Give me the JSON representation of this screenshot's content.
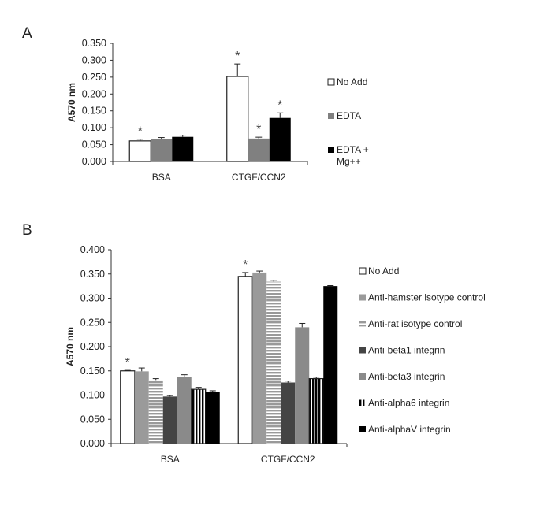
{
  "chart_data": [
    {
      "type": "bar",
      "panel": "A",
      "ylabel": "A570 nm",
      "xlabel": "",
      "ylim": [
        0,
        0.35
      ],
      "yticks": [
        "0.000",
        "0.050",
        "0.100",
        "0.150",
        "0.200",
        "0.250",
        "0.300",
        "0.350"
      ],
      "categories": [
        "BSA",
        "CTGF/CCN2"
      ],
      "legend_position": "right",
      "series": [
        {
          "name": "No Add",
          "style": "white",
          "values": [
            0.061,
            0.252
          ],
          "errors": [
            0.005,
            0.037
          ],
          "significant": [
            true,
            true
          ]
        },
        {
          "name": "EDTA",
          "style": "gray",
          "values": [
            0.066,
            0.068
          ],
          "errors": [
            0.005,
            0.004
          ],
          "significant": [
            false,
            true
          ]
        },
        {
          "name": "EDTA + Mg++",
          "style": "black",
          "values": [
            0.073,
            0.129
          ],
          "errors": [
            0.005,
            0.015
          ],
          "significant": [
            false,
            true
          ]
        }
      ],
      "annotation": "*"
    },
    {
      "type": "bar",
      "panel": "B",
      "ylabel": "A570 nm",
      "xlabel": "",
      "ylim": [
        0,
        0.4
      ],
      "yticks": [
        "0.000",
        "0.050",
        "0.100",
        "0.150",
        "0.200",
        "0.250",
        "0.300",
        "0.350",
        "0.400"
      ],
      "categories": [
        "BSA",
        "CTGF/CCN2"
      ],
      "legend_position": "right",
      "series": [
        {
          "name": "No Add",
          "style": "white",
          "values": [
            0.15,
            0.345
          ],
          "errors": [
            0.001,
            0.008
          ],
          "significant": [
            true,
            true
          ]
        },
        {
          "name": "Anti-hamster isotype control",
          "style": "lightgray",
          "values": [
            0.149,
            0.353
          ],
          "errors": [
            0.007,
            0.003
          ],
          "significant": [
            false,
            false
          ]
        },
        {
          "name": "Anti-rat isotype control",
          "style": "hstripe",
          "values": [
            0.131,
            0.334
          ],
          "errors": [
            0.003,
            0.003
          ],
          "significant": [
            false,
            false
          ]
        },
        {
          "name": "Anti-beta1 integrin",
          "style": "darkgray",
          "values": [
            0.097,
            0.126
          ],
          "errors": [
            0.002,
            0.003
          ],
          "significant": [
            false,
            false
          ]
        },
        {
          "name": "Anti-beta3 integrin",
          "style": "midgray",
          "values": [
            0.138,
            0.24
          ],
          "errors": [
            0.004,
            0.008
          ],
          "significant": [
            false,
            false
          ]
        },
        {
          "name": "Anti-alpha6 integrin",
          "style": "vstripe",
          "values": [
            0.112,
            0.134
          ],
          "errors": [
            0.004,
            0.003
          ],
          "significant": [
            false,
            false
          ]
        },
        {
          "name": "Anti-alphaV integrin",
          "style": "black",
          "values": [
            0.106,
            0.325
          ],
          "errors": [
            0.003,
            0.001
          ],
          "significant": [
            false,
            false
          ]
        }
      ],
      "annotation": "*"
    }
  ]
}
